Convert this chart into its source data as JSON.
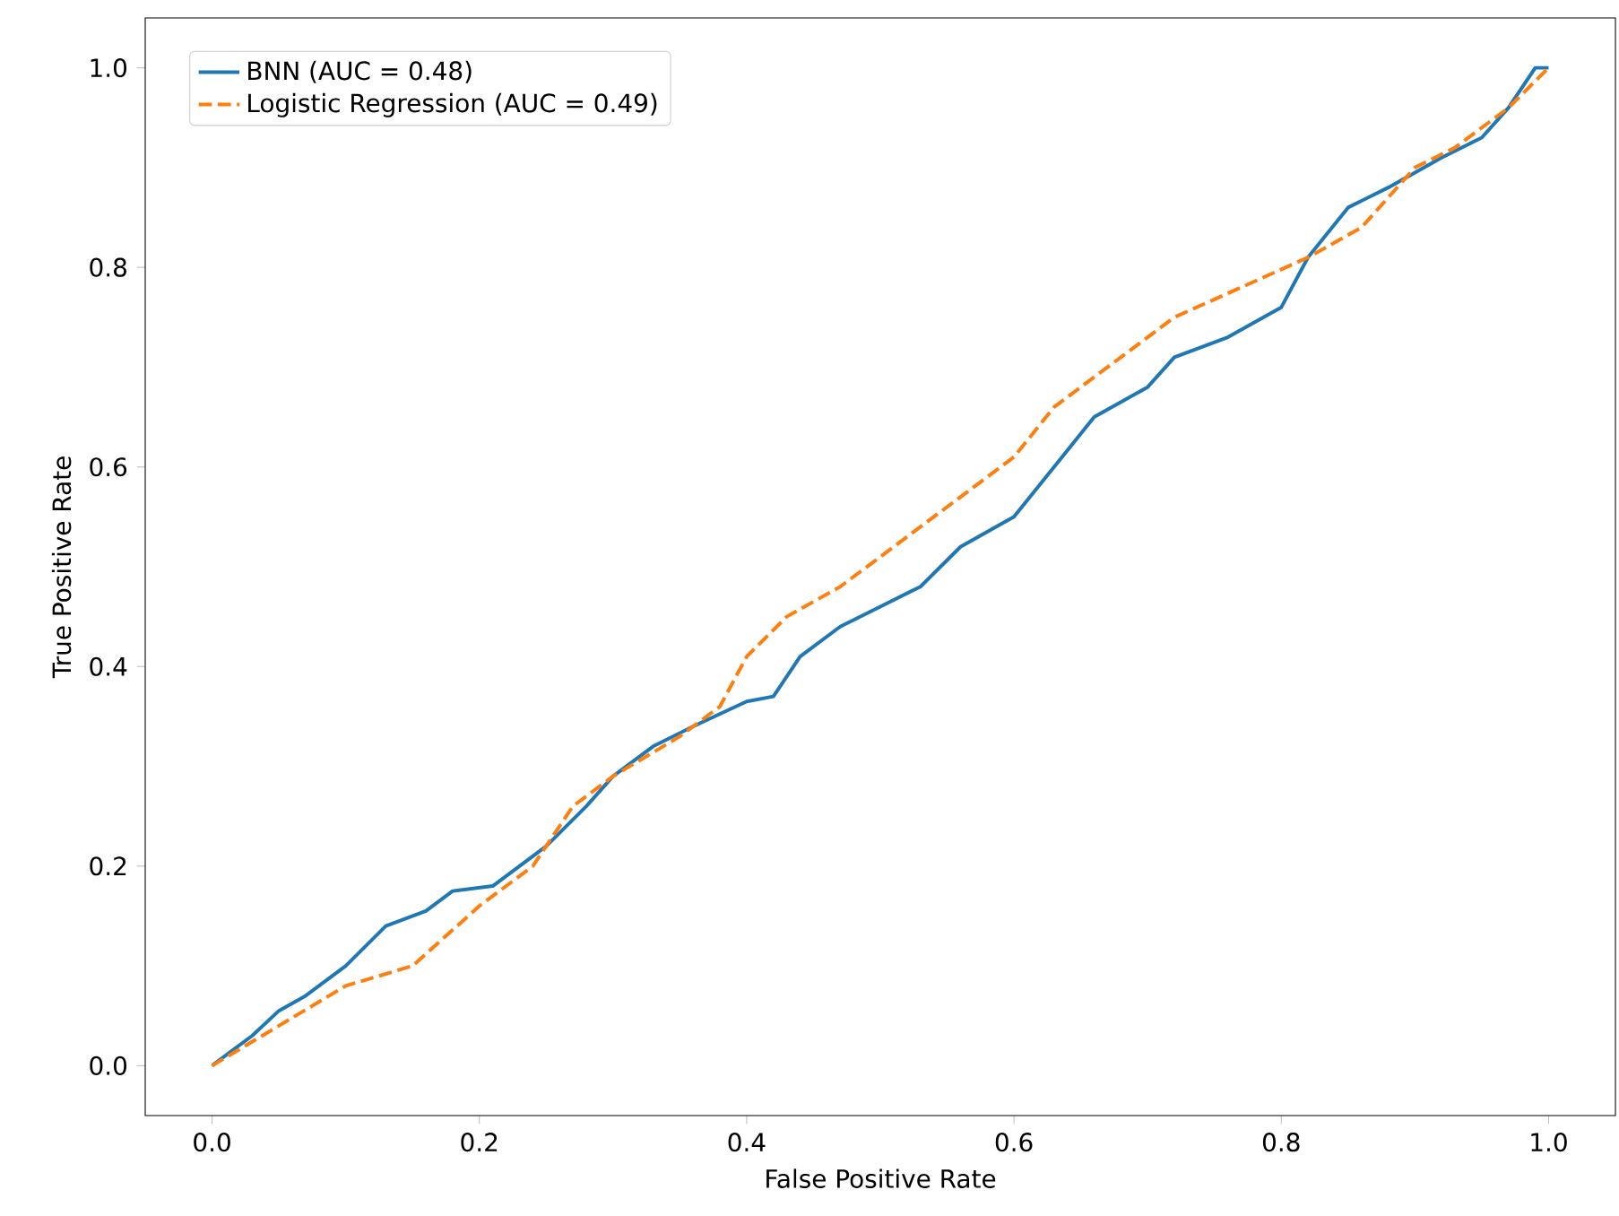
{
  "chart_data": {
    "type": "line",
    "xlabel": "False Positive Rate",
    "ylabel": "True Positive Rate",
    "xlim": [
      -0.05,
      1.05
    ],
    "ylim": [
      -0.05,
      1.05
    ],
    "xticks": [
      {
        "value": 0,
        "label": "0.0"
      },
      {
        "value": 0.2,
        "label": "0.2"
      },
      {
        "value": 0.4,
        "label": "0.4"
      },
      {
        "value": 0.6,
        "label": "0.6"
      },
      {
        "value": 0.8,
        "label": "0.8"
      },
      {
        "value": 1,
        "label": "1.0"
      }
    ],
    "yticks": [
      {
        "value": 0,
        "label": "0.0"
      },
      {
        "value": 0.2,
        "label": "0.2"
      },
      {
        "value": 0.4,
        "label": "0.4"
      },
      {
        "value": 0.6,
        "label": "0.6"
      },
      {
        "value": 0.8,
        "label": "0.8"
      },
      {
        "value": 1,
        "label": "1.0"
      }
    ],
    "legend": "top left",
    "grid": false,
    "marker": "none",
    "series": [
      {
        "name": "BNN (AUC = 0.48)",
        "color": "#1f77b4",
        "line_style": "solid",
        "x": [
          0,
          0.03,
          0.05,
          0.07,
          0.1,
          0.13,
          0.16,
          0.18,
          0.21,
          0.25,
          0.28,
          0.3,
          0.33,
          0.36,
          0.4,
          0.42,
          0.44,
          0.47,
          0.5,
          0.53,
          0.56,
          0.6,
          0.63,
          0.66,
          0.7,
          0.72,
          0.76,
          0.8,
          0.82,
          0.85,
          0.88,
          0.92,
          0.95,
          0.97,
          0.99,
          1
        ],
        "values": [
          0,
          0.03,
          0.055,
          0.07,
          0.1,
          0.14,
          0.155,
          0.175,
          0.18,
          0.22,
          0.26,
          0.29,
          0.32,
          0.34,
          0.365,
          0.37,
          0.41,
          0.44,
          0.46,
          0.48,
          0.52,
          0.55,
          0.6,
          0.65,
          0.68,
          0.71,
          0.73,
          0.76,
          0.81,
          0.86,
          0.88,
          0.91,
          0.93,
          0.96,
          1,
          1
        ]
      },
      {
        "name": "Logistic Regression (AUC = 0.49)",
        "color": "#ff7f0e",
        "line_style": "dashed",
        "x": [
          0,
          0.05,
          0.1,
          0.15,
          0.2,
          0.24,
          0.27,
          0.3,
          0.35,
          0.38,
          0.4,
          0.43,
          0.47,
          0.5,
          0.55,
          0.6,
          0.63,
          0.68,
          0.72,
          0.77,
          0.82,
          0.86,
          0.9,
          0.93,
          0.97,
          1
        ],
        "values": [
          0,
          0.04,
          0.08,
          0.1,
          0.16,
          0.2,
          0.26,
          0.29,
          0.33,
          0.36,
          0.41,
          0.45,
          0.48,
          0.51,
          0.56,
          0.61,
          0.66,
          0.71,
          0.75,
          0.78,
          0.81,
          0.84,
          0.9,
          0.92,
          0.96,
          1
        ]
      }
    ]
  }
}
